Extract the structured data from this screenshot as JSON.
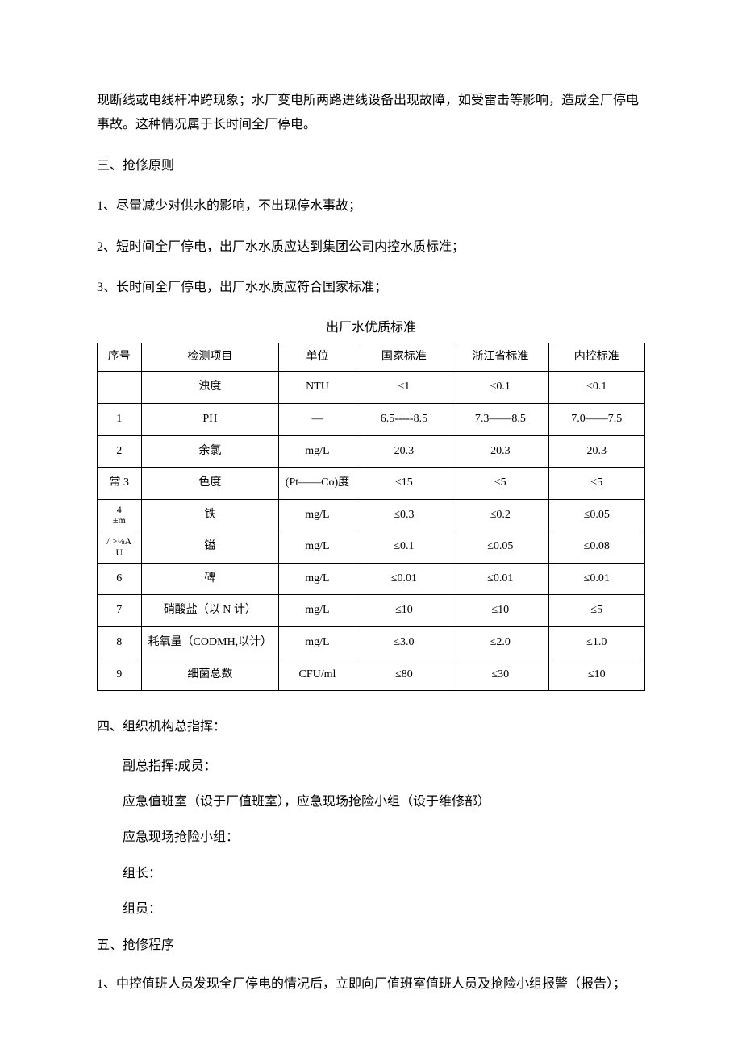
{
  "intro": {
    "p1": "现断线或电线杆冲跨现象；水厂变电所两路进线设备出现故障，如受雷击等影响，造成全厂停电事故。这种情况属于长时间全厂停电。"
  },
  "sec3": {
    "heading": "三、抢修原则",
    "items": [
      "1、尽量减少对供水的影响，不出现停水事故；",
      "2、短时间全厂停电，出厂水水质应达到集团公司内控水质标准；",
      "3、长时间全厂停电，出厂水水质应符合国家标准；"
    ]
  },
  "table": {
    "title": "出厂水优质标准",
    "headers": {
      "seq": "序号",
      "item": "检测项目",
      "unit": "单位",
      "national": "国家标准",
      "zhejiang": "浙江省标准",
      "internal": "内控标准"
    },
    "rows": [
      {
        "seq": "",
        "item": "浊度",
        "unit": "NTU",
        "national": "≤1",
        "zhejiang": "≤0.1",
        "internal": "≤0.1",
        "tall": true
      },
      {
        "seq": "1",
        "item": "PH",
        "unit": "—",
        "national": "6.5-----8.5",
        "zhejiang": "7.3——8.5",
        "internal": "7.0——7.5"
      },
      {
        "seq": "2",
        "item": "余氯",
        "unit": "mg/L",
        "national": "20.3",
        "zhejiang": "20.3",
        "internal": "20.3"
      },
      {
        "seq": "常 3",
        "item": "色度",
        "unit": "(Pt——Co)度",
        "national": "≤15",
        "zhejiang": "≤5",
        "internal": "≤5",
        "tall": true
      },
      {
        "seq": "4\n±m",
        "item": "铁",
        "unit": "mg/L",
        "national": "≤0.3",
        "zhejiang": "≤0.2",
        "internal": "≤0.05"
      },
      {
        "seq": "/ >⅛A\nU",
        "item": "镒",
        "unit": "mg/L",
        "national": "≤0.1",
        "zhejiang": "≤0.05",
        "internal": "≤0.08"
      },
      {
        "seq": "6",
        "item": "碑",
        "unit": "mg/L",
        "national": "≤0.01",
        "zhejiang": "≤0.01",
        "internal": "≤0.01"
      },
      {
        "seq": "7",
        "item": "硝酸盐（以 N 计）",
        "unit": "mg/L",
        "national": "≤10",
        "zhejiang": "≤10",
        "internal": "≤5"
      },
      {
        "seq": "8",
        "item": "耗氧量（CODMH,以计）",
        "unit": "mg/L",
        "national": "≤3.0",
        "zhejiang": "≤2.0",
        "internal": "≤1.0"
      },
      {
        "seq": "9",
        "item": "细菌总数",
        "unit": "CFU/ml",
        "national": "≤80",
        "zhejiang": "≤30",
        "internal": "≤10"
      }
    ]
  },
  "sec4": {
    "heading": "四、组织机构总指挥：",
    "lines": [
      "副总指挥:成员：",
      "应急值班室（设于厂值班室），应急现场抢险小组（设于维修部）",
      "应急现场抢险小组：",
      "组长：",
      "组员："
    ]
  },
  "sec5": {
    "heading": "五、抢修程序",
    "items": [
      "1、中控值班人员发现全厂停电的情况后，立即向厂值班室值班人员及抢险小组报警（报告）；"
    ]
  }
}
